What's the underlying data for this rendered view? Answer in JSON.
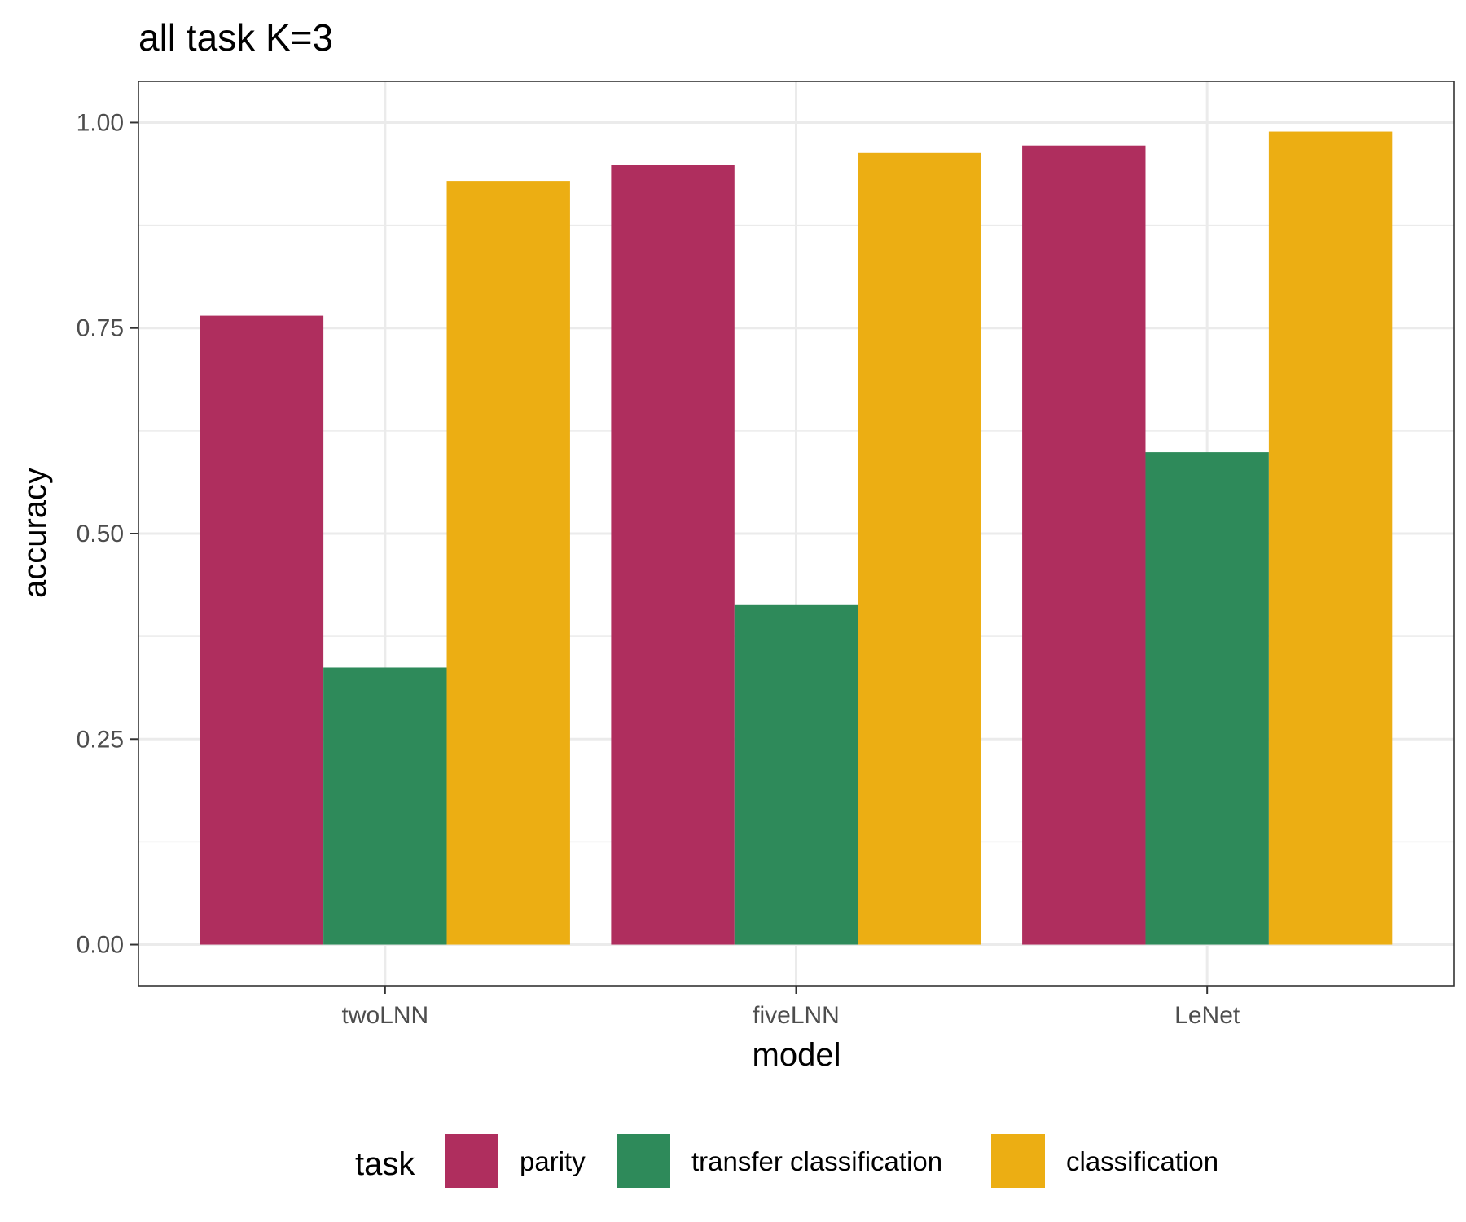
{
  "chart_data": {
    "type": "bar",
    "title": "all task  K=3",
    "xlabel": "model",
    "ylabel": "accuracy",
    "categories": [
      "twoLNN",
      "fiveLNN",
      "LeNet"
    ],
    "series": [
      {
        "name": "parity",
        "color": "#AF2E5E",
        "values": [
          0.765,
          0.948,
          0.972
        ]
      },
      {
        "name": "transfer classification",
        "color": "#2E8A5A",
        "values": [
          0.337,
          0.413,
          0.599
        ]
      },
      {
        "name": "classification",
        "color": "#ECAE13",
        "values": [
          0.929,
          0.963,
          0.989
        ]
      }
    ],
    "ylim": [
      -0.05,
      1.05
    ],
    "yticks": [
      0.0,
      0.25,
      0.5,
      0.75,
      1.0
    ],
    "ytick_labels": [
      "0.00",
      "0.25",
      "0.50",
      "0.75",
      "1.00"
    ],
    "grid": true,
    "legend": {
      "title": "task",
      "placement": "bottom"
    }
  }
}
